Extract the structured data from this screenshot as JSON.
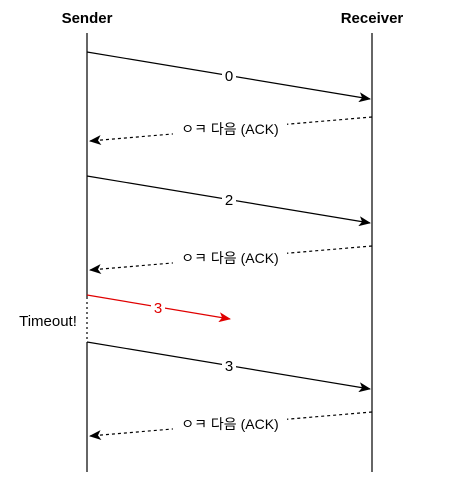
{
  "actors": {
    "sender": "Sender",
    "receiver": "Receiver"
  },
  "messages": [
    {
      "id": "msg-0",
      "from": "sender",
      "to": "receiver",
      "label": "0",
      "style": "solid",
      "color": "#000000"
    },
    {
      "id": "ack-1",
      "from": "receiver",
      "to": "sender",
      "label": "ㅇㅋ 다음 (ACK)",
      "style": "dashed",
      "color": "#000000"
    },
    {
      "id": "msg-2",
      "from": "sender",
      "to": "receiver",
      "label": "2",
      "style": "solid",
      "color": "#000000"
    },
    {
      "id": "ack-2",
      "from": "receiver",
      "to": "sender",
      "label": "ㅇㅋ 다음 (ACK)",
      "style": "dashed",
      "color": "#000000"
    },
    {
      "id": "msg-3-lost",
      "from": "sender",
      "to": "lost",
      "label": "3",
      "style": "solid",
      "color": "#e00000"
    },
    {
      "id": "msg-3-retry",
      "from": "sender",
      "to": "receiver",
      "label": "3",
      "style": "solid",
      "color": "#000000"
    },
    {
      "id": "ack-3",
      "from": "receiver",
      "to": "sender",
      "label": "ㅇㅋ 다음 (ACK)",
      "style": "dashed",
      "color": "#000000"
    }
  ],
  "timeout": {
    "label": "Timeout!"
  }
}
